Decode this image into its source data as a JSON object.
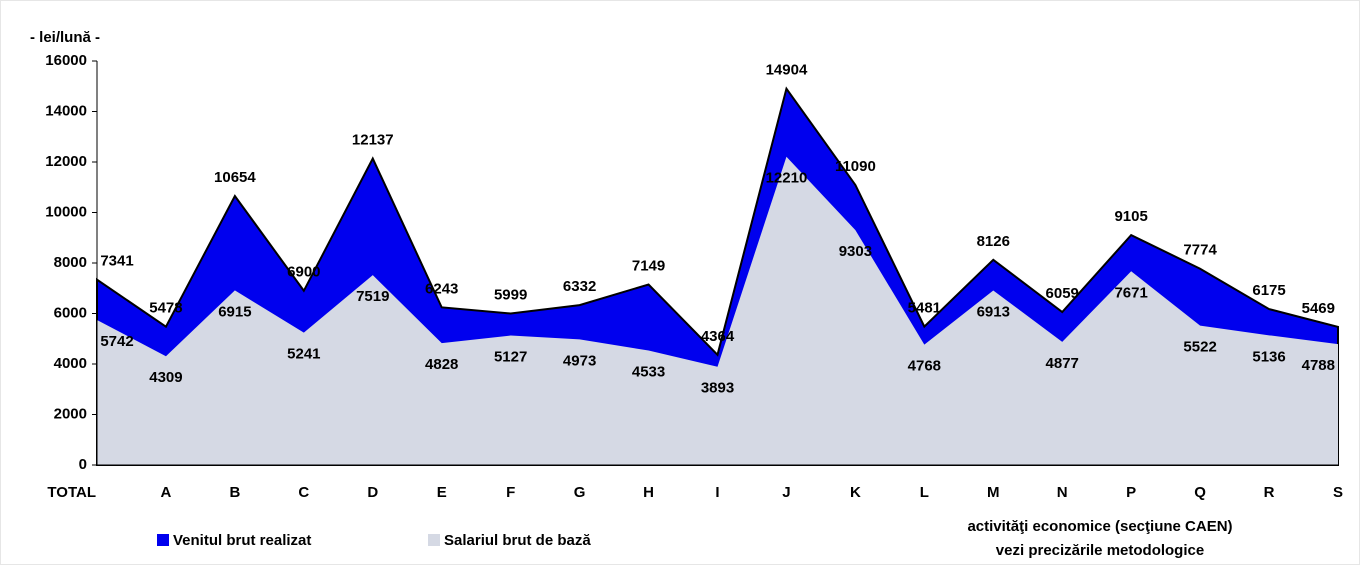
{
  "chart_data": {
    "type": "area",
    "y_label": "- lei/lună -",
    "x_label_lines": [
      "activităţi economice (secţiune CAEN)",
      "vezi precizările metodologice"
    ],
    "categories": [
      "TOTAL",
      "A",
      "B",
      "C",
      "D",
      "E",
      "F",
      "G",
      "H",
      "I",
      "J",
      "K",
      "L",
      "M",
      "N",
      "P",
      "Q",
      "R",
      "S"
    ],
    "series": [
      {
        "name": "Venitul brut realizat",
        "color": "#0000ee",
        "values": [
          7341,
          5478,
          10654,
          6900,
          12137,
          6243,
          5999,
          6332,
          7149,
          4364,
          14904,
          11090,
          5481,
          8126,
          6059,
          9105,
          7774,
          6175,
          5469
        ]
      },
      {
        "name": "Salariul brut de bază",
        "color": "#d5d9e4",
        "values": [
          5742,
          4309,
          6915,
          5241,
          7519,
          4828,
          5127,
          4973,
          4533,
          3893,
          12210,
          9303,
          4768,
          6913,
          4877,
          7671,
          5522,
          5136,
          4788
        ]
      }
    ],
    "ylim": [
      0,
      16000
    ],
    "yticks": [
      0,
      2000,
      4000,
      6000,
      8000,
      10000,
      12000,
      14000,
      16000
    ],
    "grid": false,
    "legend": "bottom"
  }
}
